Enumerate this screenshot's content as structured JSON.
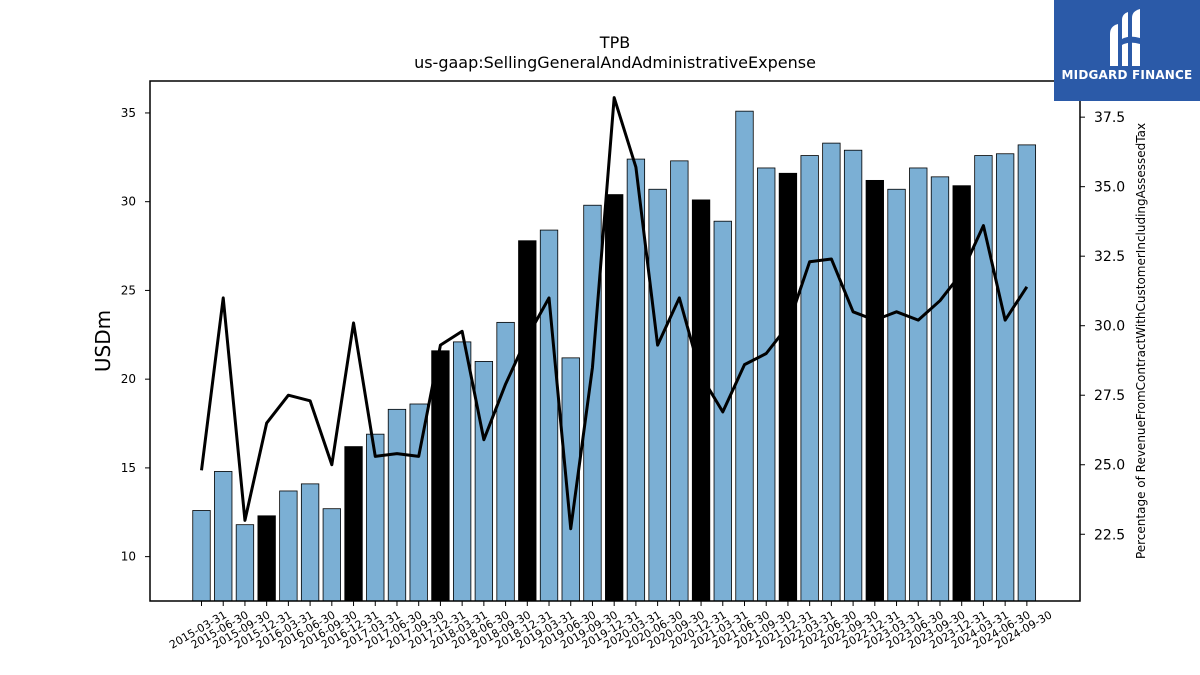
{
  "chart_data": {
    "type": "bar",
    "title": "TPB",
    "subtitle": "us-gaap:SellingGeneralAndAdministrativeExpense",
    "ylabel": "USDm",
    "ylabel_right": "Percentage of RevenueFromContractWithCustomerIncludingAssessedTax",
    "ylim": [
      7.5,
      36.8
    ],
    "ylim_right": [
      20.1,
      38.8
    ],
    "yticks": [
      10,
      15,
      20,
      25,
      30,
      35
    ],
    "yticks_right": [
      "22.5",
      "25.0",
      "27.5",
      "30.0",
      "32.5",
      "35.0",
      "37.5"
    ],
    "categories": [
      "2015-03-31",
      "2015-06-30",
      "2015-09-30",
      "2015-12-31",
      "2016-03-31",
      "2016-06-30",
      "2016-09-30",
      "2016-12-31",
      "2017-03-31",
      "2017-06-30",
      "2017-09-30",
      "2017-12-31",
      "2018-03-31",
      "2018-06-30",
      "2018-09-30",
      "2018-12-31",
      "2019-03-31",
      "2019-06-30",
      "2019-09-30",
      "2019-12-31",
      "2020-03-31",
      "2020-06-30",
      "2020-09-30",
      "2020-12-31",
      "2021-03-31",
      "2021-06-30",
      "2021-09-30",
      "2021-12-31",
      "2022-03-31",
      "2022-06-30",
      "2022-09-30",
      "2022-12-31",
      "2023-03-31",
      "2023-06-30",
      "2023-09-30",
      "2023-12-31",
      "2024-03-31",
      "2024-06-30",
      "2024-09-30"
    ],
    "series": [
      {
        "type": "bar",
        "values": [
          12.6,
          14.8,
          11.8,
          12.3,
          13.7,
          14.1,
          12.7,
          16.2,
          16.9,
          18.3,
          18.6,
          21.6,
          22.1,
          21.0,
          23.2,
          27.8,
          28.4,
          21.2,
          29.8,
          30.4,
          32.4,
          30.7,
          32.3,
          30.1,
          28.9,
          35.1,
          31.9,
          31.6,
          32.6,
          33.3,
          32.9,
          31.2,
          30.7,
          31.9,
          31.4,
          30.9,
          32.6,
          32.7,
          33.2
        ],
        "highlight": [
          "2015-12-31",
          "2016-12-31",
          "2017-12-31",
          "2018-12-31",
          "2019-12-31",
          "2020-12-31",
          "2021-12-31",
          "2022-12-31",
          "2023-12-31"
        ],
        "color": "#7bafd4",
        "highlight_color": "#000000"
      },
      {
        "type": "line",
        "axis": "right",
        "values": [
          24.8,
          31.0,
          23.0,
          26.5,
          27.5,
          27.3,
          25.0,
          30.1,
          25.3,
          25.4,
          25.3,
          29.3,
          29.8,
          25.9,
          27.9,
          29.6,
          31.0,
          22.7,
          28.5,
          38.2,
          35.7,
          29.3,
          31.0,
          28.2,
          26.9,
          28.6,
          29.0,
          30.0,
          32.3,
          32.4,
          30.5,
          30.2,
          30.5,
          30.2,
          30.9,
          31.9,
          33.6,
          30.2,
          31.4
        ],
        "color": "#000000"
      }
    ]
  },
  "logo": {
    "text": "MIDGARD FINANCE"
  }
}
